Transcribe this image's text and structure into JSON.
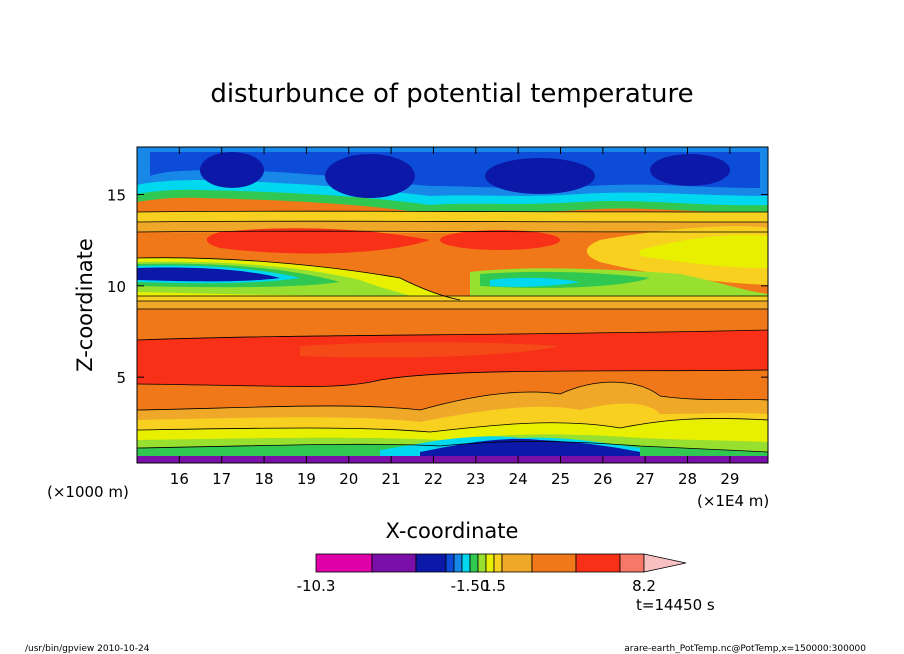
{
  "chart_data": {
    "type": "heatmap",
    "title": "disturbunce of potential temperature",
    "xlabel": "X-coordinate",
    "ylabel": "Z-coordinate",
    "x_unit_left": "(×1000 m)",
    "x_unit_right": "(×1E4 m)",
    "xlim": [
      15.0,
      29.9
    ],
    "ylim": [
      0.3,
      17.6
    ],
    "x_ticks": [
      16,
      17,
      18,
      19,
      20,
      21,
      22,
      23,
      24,
      25,
      26,
      27,
      28,
      29
    ],
    "y_ticks": [
      5,
      10,
      15
    ],
    "colorbar": {
      "colors": [
        "#e000a8",
        "#7a10a8",
        "#0c18a8",
        "#0c4cd8",
        "#1888e8",
        "#00d8f0",
        "#30c850",
        "#98e030",
        "#e8f000",
        "#f8d020",
        "#f0a828",
        "#f07818",
        "#f83018",
        "#f87868",
        "#f8c0c0"
      ],
      "labels": [
        {
          "value": "-10.3",
          "at": 0
        },
        {
          "value": "-1.50",
          "at": 6
        },
        {
          "value": "1.5",
          "at": 9
        },
        {
          "value": "8.2",
          "at": 14
        }
      ]
    },
    "time_label": "t=14450 s"
  },
  "footer": {
    "left": "/usr/bin/gpview 2010-10-24",
    "right": "arare-earth_PotTemp.nc@PotTemp,x=150000:300000"
  }
}
